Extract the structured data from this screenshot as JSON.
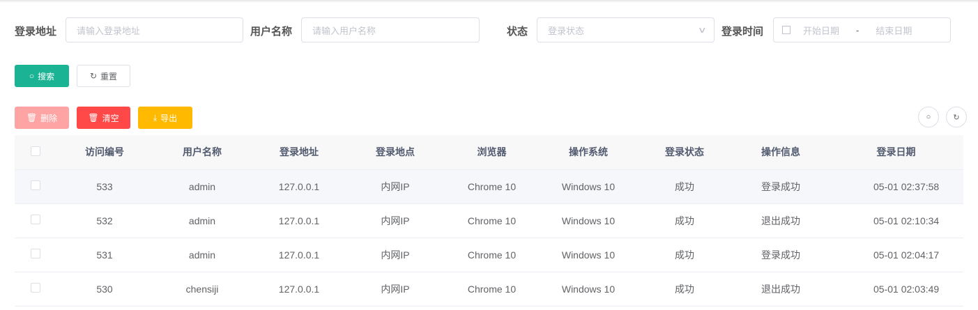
{
  "search": {
    "login_address": {
      "label": "登录地址",
      "placeholder": "请输入登录地址"
    },
    "username": {
      "label": "用户名称",
      "placeholder": "请输入用户名称"
    },
    "status": {
      "label": "状态",
      "placeholder": "登录状态"
    },
    "login_time": {
      "label": "登录时间",
      "start_placeholder": "开始日期",
      "separator": "-",
      "end_placeholder": "结束日期"
    },
    "search_button": "搜索",
    "reset_button": "重置"
  },
  "toolbar": {
    "delete": "删除",
    "clear": "清空",
    "export": "导出"
  },
  "colors": {
    "primary": "#1ab394",
    "danger": "#ff4949",
    "danger_disabled": "#ffa4a4",
    "warning": "#ffba00"
  },
  "table": {
    "columns": [
      "访问编号",
      "用户名称",
      "登录地址",
      "登录地点",
      "浏览器",
      "操作系统",
      "登录状态",
      "操作信息",
      "登录日期"
    ],
    "rows": [
      [
        "533",
        "admin",
        "127.0.0.1",
        "内网IP",
        "Chrome 10",
        "Windows 10",
        "成功",
        "登录成功",
        "05-01 02:37:58"
      ],
      [
        "532",
        "admin",
        "127.0.0.1",
        "内网IP",
        "Chrome 10",
        "Windows 10",
        "成功",
        "退出成功",
        "05-01 02:10:34"
      ],
      [
        "531",
        "admin",
        "127.0.0.1",
        "内网IP",
        "Chrome 10",
        "Windows 10",
        "成功",
        "登录成功",
        "05-01 02:04:17"
      ],
      [
        "530",
        "chensiji",
        "127.0.0.1",
        "内网IP",
        "Chrome 10",
        "Windows 10",
        "成功",
        "退出成功",
        "05-01 02:03:49"
      ]
    ]
  }
}
